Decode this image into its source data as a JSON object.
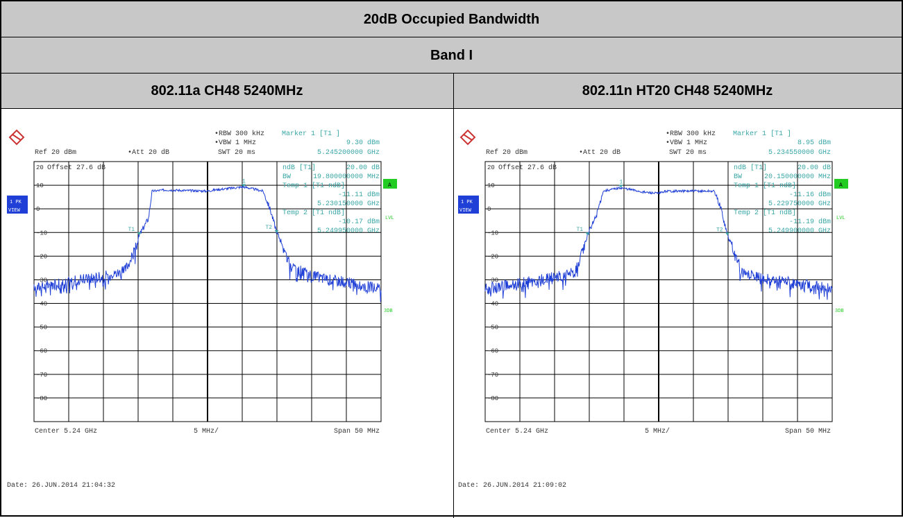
{
  "table": {
    "title": "20dB Occupied Bandwidth",
    "band": "Band I",
    "left_header": "802.11a CH48 5240MHz",
    "right_header": "802.11n HT20 CH48 5240MHz"
  },
  "chart_data": [
    {
      "type": "line",
      "title": "",
      "xlabel": "",
      "ylabel": "",
      "settings": {
        "rbw": "RBW 300 kHz",
        "vbw": "VBW 1 MHz",
        "swt": "SWT 20 ms",
        "ref": "Ref  20 dBm",
        "att": "Att  20 dB",
        "offset": "Offset  27.6 dB",
        "trace": "1 PK",
        "view": "VIEW",
        "a_badge": "A",
        "lvl": "LVL",
        "tdf": "3DB"
      },
      "marker": {
        "title": "Marker 1 [T1 ]",
        "level": "9.30 dBm",
        "freq": "5.245200000 GHz"
      },
      "ndb": {
        "label": "ndB [T1]",
        "value": "20.00 dB",
        "bw_label": "BW",
        "bw": "19.800000000 MHz",
        "temp1_label": "Temp 1 [T1 ndB]",
        "temp1_level": "-11.11 dBm",
        "temp1_freq": "5.230150000 GHz",
        "temp2_label": "Temp 2 [T1 ndB]",
        "temp2_level": "-10.17 dBm",
        "temp2_freq": "5.249950000 GHz"
      },
      "x_axis": {
        "center": "Center 5.24 GHz",
        "div": "5 MHz/",
        "span": "Span 50 MHz",
        "xlim_mhz": [
          5215,
          5265
        ]
      },
      "y_ticks": [
        "20",
        "10",
        "0",
        "-10",
        "-20",
        "-30",
        "-40",
        "-50",
        "-60",
        "-70",
        "-80"
      ],
      "ylim": [
        -90,
        20
      ],
      "date": "Date: 26.JUN.2014  21:04:32",
      "trace_points": [
        [
          5215,
          -33.5
        ],
        [
          5220,
          -31
        ],
        [
          5225,
          -28.5
        ],
        [
          5228,
          -26.5
        ],
        [
          5229.5,
          -18
        ],
        [
          5230.2,
          -11.1
        ],
        [
          5231.5,
          -4
        ],
        [
          5232,
          7.5
        ],
        [
          5234,
          8
        ],
        [
          5240,
          7.5
        ],
        [
          5241,
          8
        ],
        [
          5245.2,
          9.3
        ],
        [
          5248,
          7.5
        ],
        [
          5249,
          0
        ],
        [
          5250,
          -10.2
        ],
        [
          5251,
          -16
        ],
        [
          5252,
          -25
        ],
        [
          5256,
          -29
        ],
        [
          5260,
          -31
        ],
        [
          5265,
          -34
        ]
      ],
      "markers": [
        {
          "label": "1",
          "freq": 5245.2,
          "level": 9.3
        },
        {
          "label": "T1",
          "freq": 5230.15,
          "level": -11.11
        },
        {
          "label": "T2",
          "freq": 5249.95,
          "level": -10.17
        }
      ],
      "colors": {
        "trace": "#1f3fd6",
        "grid": "#000000",
        "annot": "#3aa6a6",
        "badge": "#22cc22",
        "panel": "#1f3fd6"
      }
    },
    {
      "type": "line",
      "title": "",
      "xlabel": "",
      "ylabel": "",
      "settings": {
        "rbw": "RBW 300 kHz",
        "vbw": "VBW 1 MHz",
        "swt": "SWT 20 ms",
        "ref": "Ref  20 dBm",
        "att": "Att  20 dB",
        "offset": "Offset  27.6 dB",
        "trace": "1 PK",
        "view": "VIEW",
        "a_badge": "A",
        "lvl": "LVL",
        "tdf": "3DB"
      },
      "marker": {
        "title": "Marker 1 [T1 ]",
        "level": "8.95 dBm",
        "freq": "5.234550000 GHz"
      },
      "ndb": {
        "label": "ndB [T1]",
        "value": "20.00 dB",
        "bw_label": "BW",
        "bw": "20.150000000 MHz",
        "temp1_label": "Temp 1 [T1 ndB]",
        "temp1_level": "-11.16 dBm",
        "temp1_freq": "5.229750000 GHz",
        "temp2_label": "Temp 2 [T1 ndB]",
        "temp2_level": "-11.19 dBm",
        "temp2_freq": "5.249900000 GHz"
      },
      "x_axis": {
        "center": "Center 5.24 GHz",
        "div": "5 MHz/",
        "span": "Span 50 MHz",
        "xlim_mhz": [
          5215,
          5265
        ]
      },
      "y_ticks": [
        "20",
        "10",
        "0",
        "-10",
        "-20",
        "-30",
        "-40",
        "-50",
        "-60",
        "-70",
        "-80"
      ],
      "ylim": [
        -90,
        20
      ],
      "date": "Date: 26.JUN.2014  21:09:02",
      "trace_points": [
        [
          5215,
          -34
        ],
        [
          5220,
          -31.5
        ],
        [
          5225,
          -29
        ],
        [
          5228,
          -27
        ],
        [
          5229,
          -18
        ],
        [
          5229.75,
          -11.2
        ],
        [
          5231,
          -3
        ],
        [
          5232,
          7.5
        ],
        [
          5234.55,
          8.95
        ],
        [
          5238,
          7
        ],
        [
          5240,
          6.5
        ],
        [
          5241,
          7.5
        ],
        [
          5248,
          7.5
        ],
        [
          5249,
          0
        ],
        [
          5249.9,
          -11.2
        ],
        [
          5251,
          -18
        ],
        [
          5252,
          -27
        ],
        [
          5256,
          -30
        ],
        [
          5260,
          -31.5
        ],
        [
          5265,
          -34
        ]
      ],
      "markers": [
        {
          "label": "1",
          "freq": 5234.55,
          "level": 8.95
        },
        {
          "label": "T1",
          "freq": 5229.75,
          "level": -11.16
        },
        {
          "label": "T2",
          "freq": 5249.9,
          "level": -11.19
        }
      ],
      "colors": {
        "trace": "#1f3fd6",
        "grid": "#000000",
        "annot": "#3aa6a6",
        "badge": "#22cc22",
        "panel": "#1f3fd6"
      }
    }
  ]
}
